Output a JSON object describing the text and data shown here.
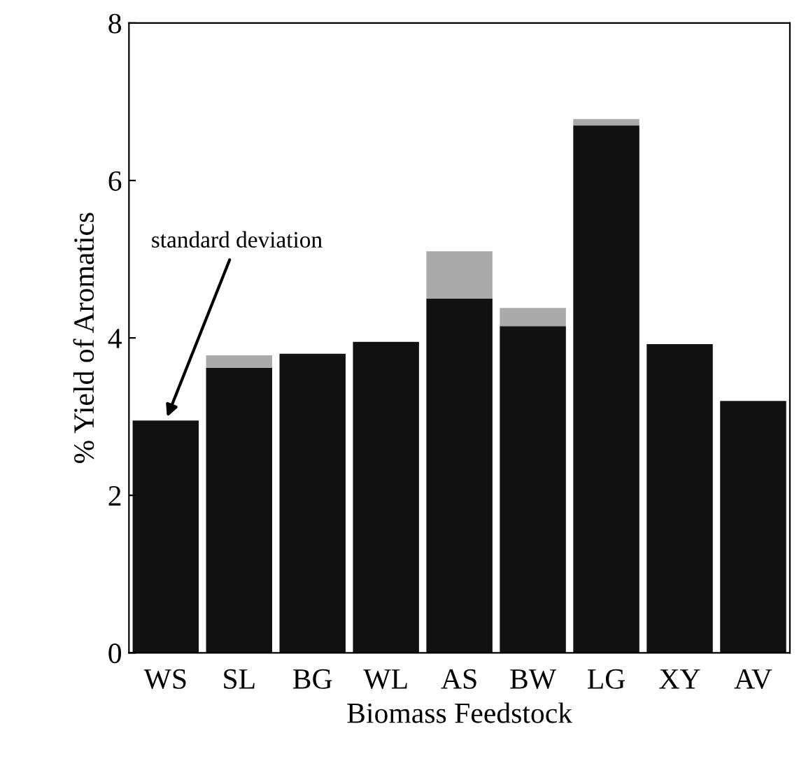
{
  "chart_data": {
    "type": "bar",
    "stacked": true,
    "xlabel": "Biomass Feedstock",
    "ylabel": "% Yield of Aromatics",
    "categories": [
      "WS",
      "SL",
      "BG",
      "WL",
      "AS",
      "BW",
      "LG",
      "XY",
      "AV"
    ],
    "series": [
      {
        "color": "#111111",
        "values": [
          2.95,
          3.62,
          3.8,
          3.95,
          4.5,
          4.15,
          6.7,
          3.92,
          3.2
        ]
      },
      {
        "color": "#aaaaaa",
        "values": [
          null,
          0.16,
          null,
          null,
          0.6,
          0.23,
          0.08,
          null,
          null
        ]
      }
    ],
    "ylim": [
      0,
      8
    ],
    "yticks": [
      0,
      2,
      4,
      6,
      8
    ],
    "grid": false,
    "annotations": [
      {
        "text": "standard deviation",
        "x": "WS",
        "y": 2.95
      }
    ]
  }
}
